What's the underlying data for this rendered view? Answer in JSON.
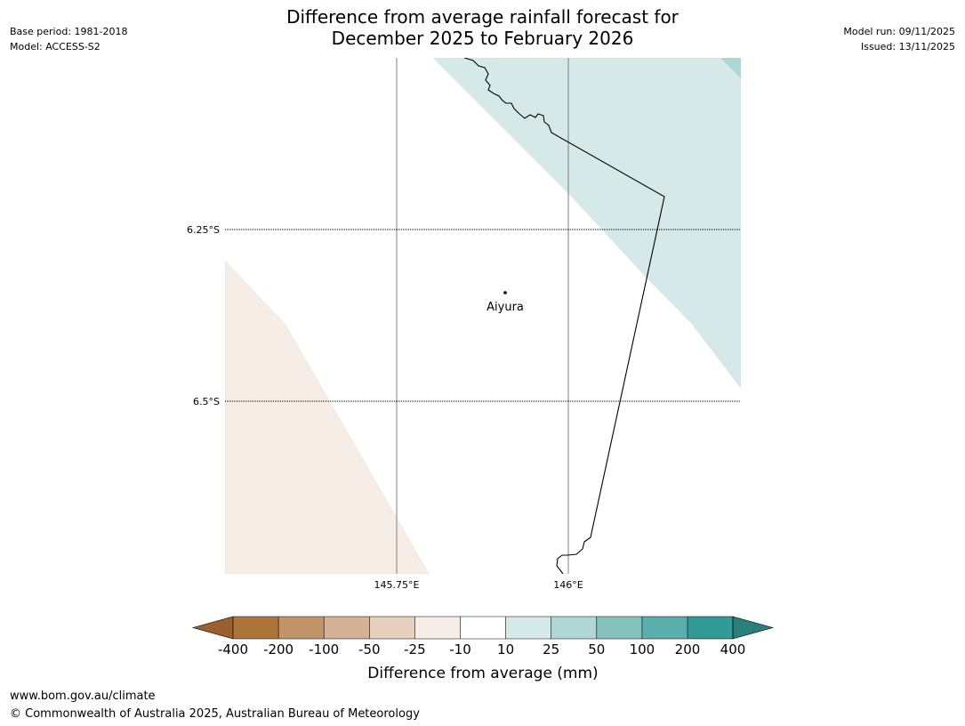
{
  "header": {
    "title_line1": "Difference from average rainfall forecast for",
    "title_line2": "December 2025 to February 2026",
    "base_period": "Base period: 1981-2018",
    "model": "Model: ACCESS-S2",
    "model_run": "Model run: 09/11/2025",
    "issued": "Issued: 13/11/2025"
  },
  "map": {
    "place_label": "Aiyura",
    "lat_labels": [
      "6.25°S",
      "6.5°S"
    ],
    "lon_labels": [
      "145.75°E",
      "146°E"
    ]
  },
  "colorbar": {
    "label": "Difference from average (mm)",
    "ticks": [
      "-400",
      "-200",
      "-100",
      "-50",
      "-25",
      "-10",
      "10",
      "25",
      "50",
      "100",
      "200",
      "400"
    ],
    "colors": [
      "#9a6030",
      "#ae753b",
      "#c29469",
      "#d4b394",
      "#e6d1be",
      "#f5ede6",
      "#ffffff",
      "#d5e9e8",
      "#afd7d5",
      "#85c1bd",
      "#5aaeab",
      "#319b98",
      "#2a7e7b"
    ]
  },
  "footer": {
    "url": "www.bom.gov.au/climate",
    "copyright": "© Commonwealth of Australia 2025, Australian Bureau of Meteorology"
  }
}
